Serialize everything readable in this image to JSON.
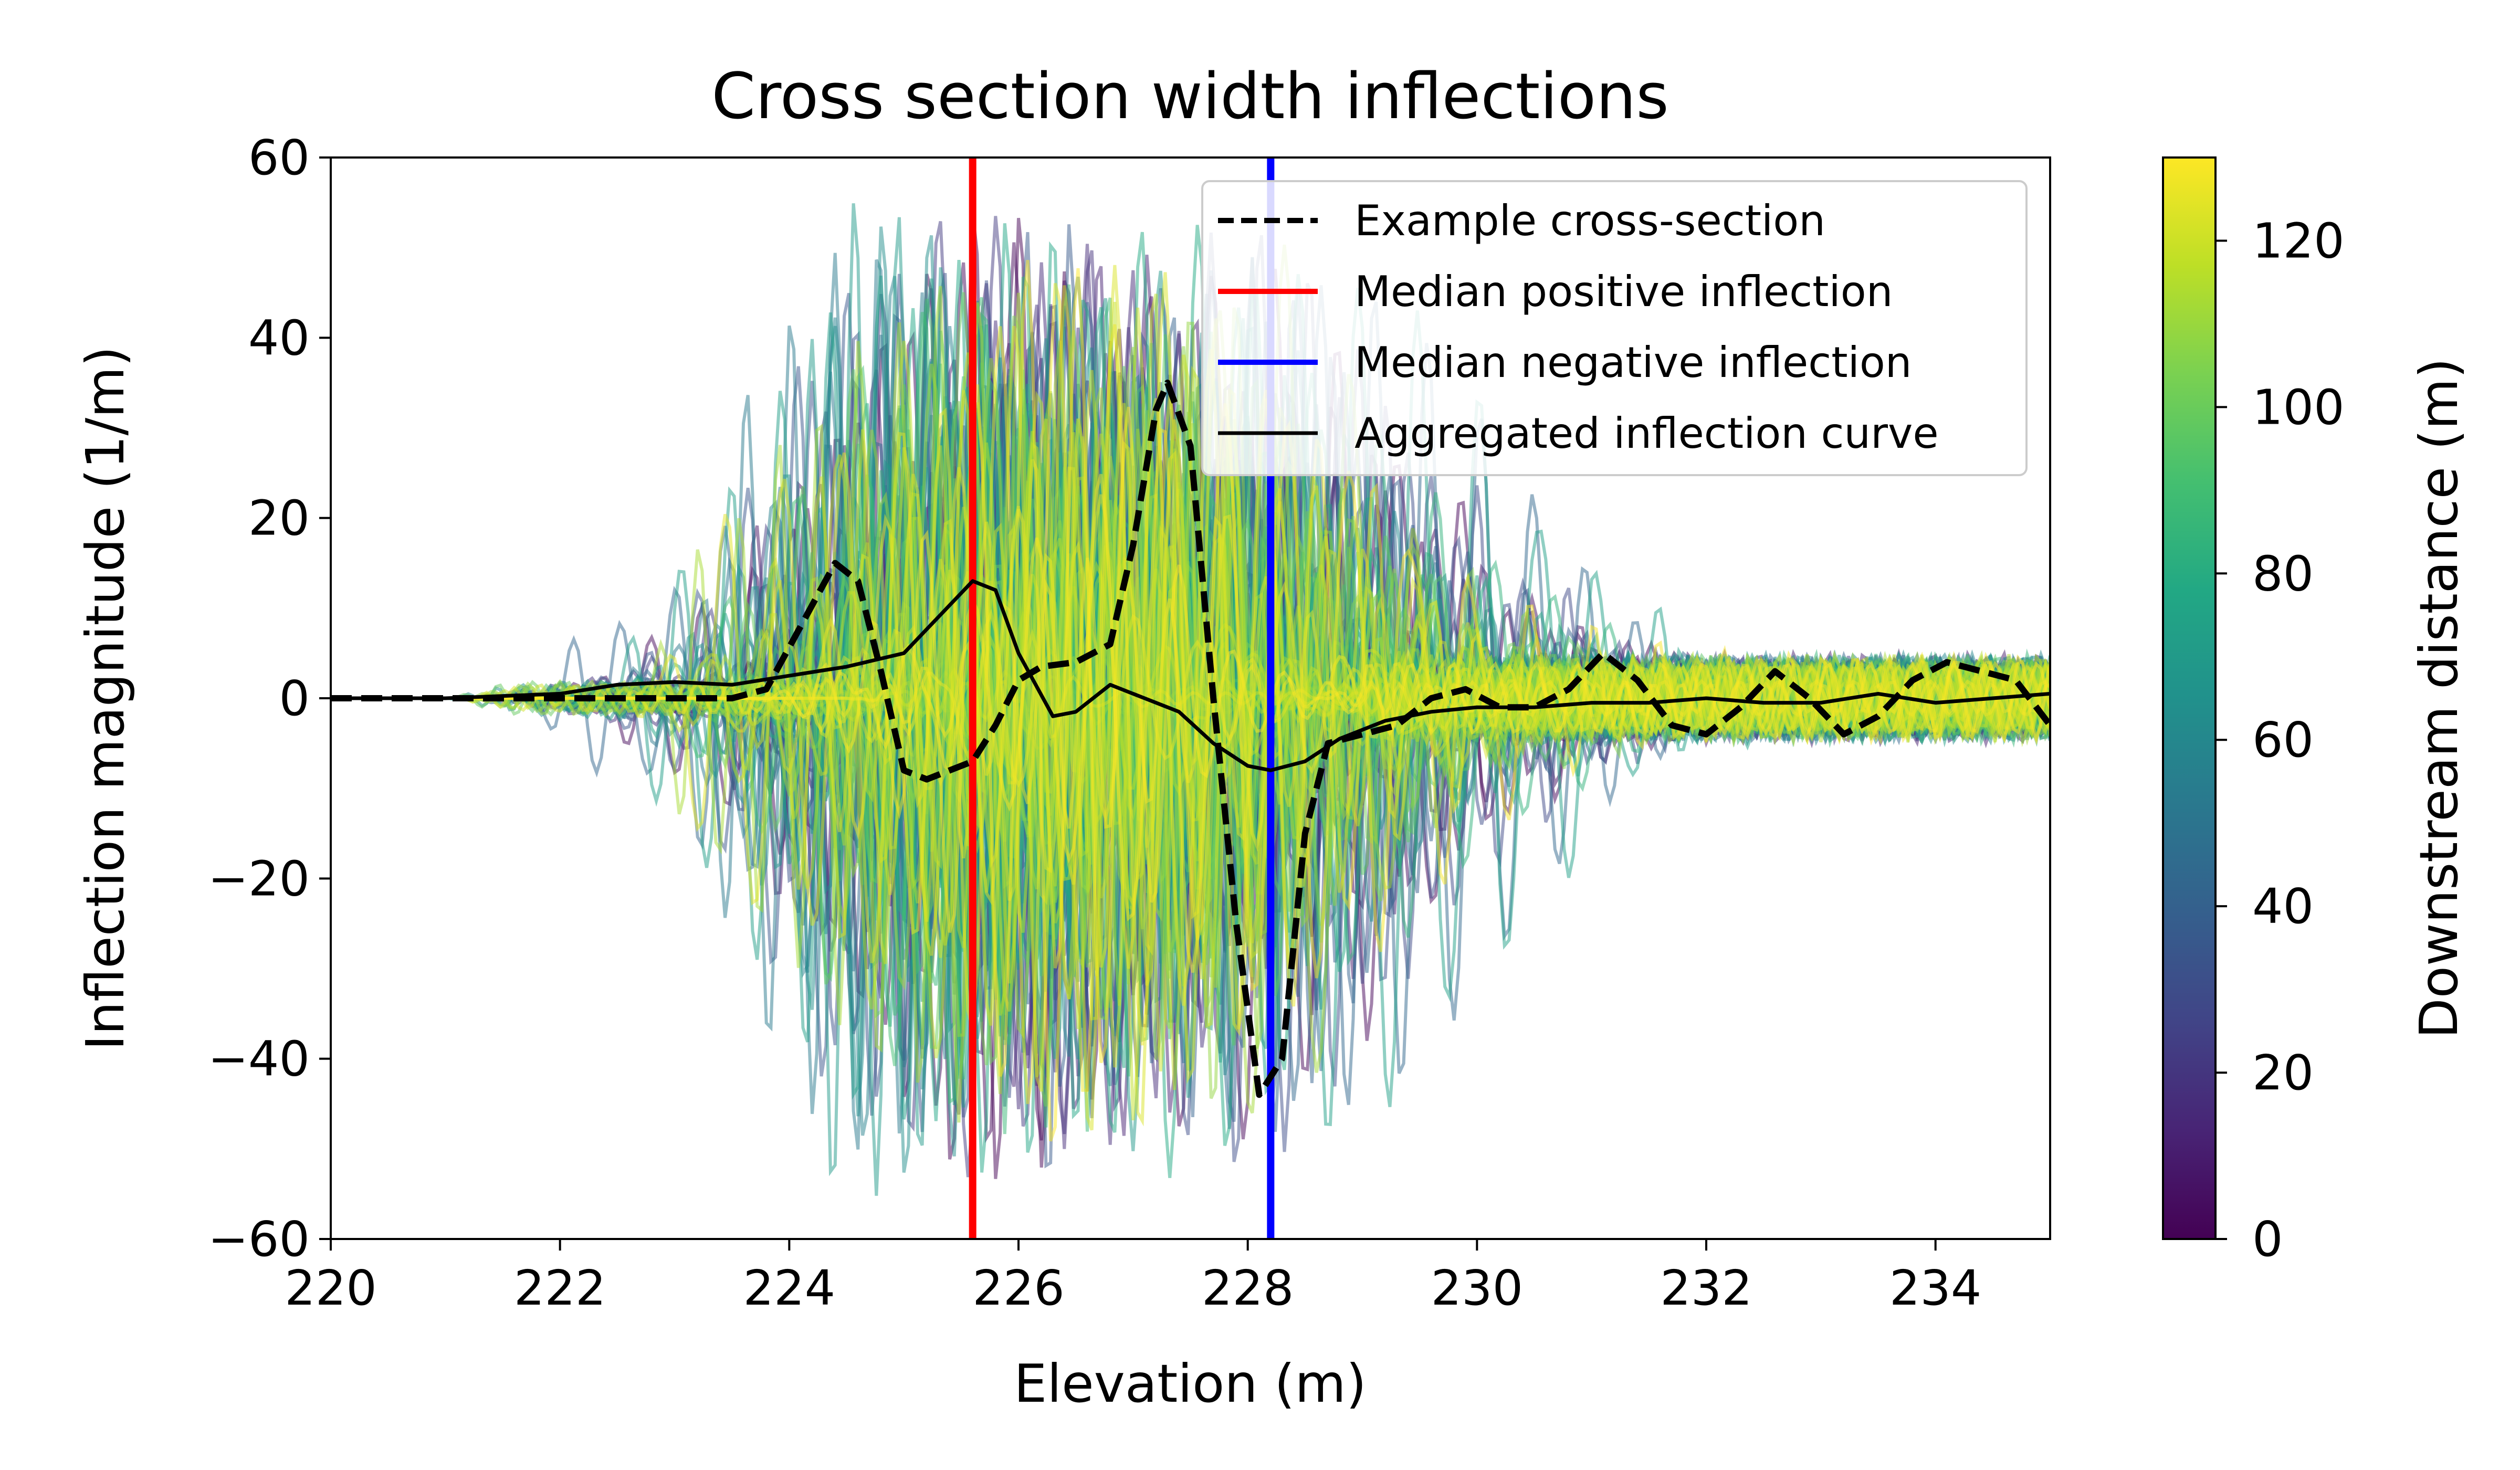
{
  "chart_data": {
    "type": "line",
    "title": "Cross section width inflections",
    "xlabel": "Elevation (m)",
    "ylabel": "Inflection magnitude (1/m)",
    "xlim": [
      220,
      235
    ],
    "ylim": [
      -60,
      60
    ],
    "xticks": [
      "220",
      "222",
      "224",
      "226",
      "228",
      "230",
      "232",
      "234"
    ],
    "yticks": [
      "60",
      "40",
      "20",
      "0",
      "−20",
      "−40",
      "−60"
    ],
    "grid": false,
    "legend_position": "top-right",
    "legend": [
      {
        "label": "Example cross-section",
        "color": "#000000",
        "style": "dashed"
      },
      {
        "label": "Median positive inflection",
        "color": "#ff0000",
        "style": "solid"
      },
      {
        "label": "Median negative inflection",
        "color": "#0000ff",
        "style": "solid"
      },
      {
        "label": "Aggregated inflection curve",
        "color": "#000000",
        "style": "solid"
      }
    ],
    "colorbar": {
      "label": "Downstream distance (m)",
      "range": [
        0,
        130
      ],
      "ticks": [
        "0",
        "20",
        "40",
        "60",
        "80",
        "100",
        "120"
      ],
      "colormap": "viridis"
    },
    "vertical_lines": [
      {
        "name": "Median positive inflection",
        "x": 225.6,
        "color": "#ff0000"
      },
      {
        "name": "Median negative inflection",
        "x": 228.2,
        "color": "#0000ff"
      }
    ],
    "series": [
      {
        "name": "Example cross-section",
        "style": "dashed",
        "color": "#000000",
        "x": [
          220,
          221,
          222,
          222.5,
          223,
          223.5,
          223.8,
          224.1,
          224.4,
          224.6,
          224.8,
          225.0,
          225.2,
          225.4,
          225.6,
          225.8,
          226.0,
          226.2,
          226.5,
          226.8,
          227.0,
          227.2,
          227.3,
          227.5,
          227.7,
          227.9,
          228.1,
          228.3,
          228.5,
          228.7,
          229.0,
          229.3,
          229.6,
          229.9,
          230.2,
          230.5,
          230.8,
          231.1,
          231.4,
          231.7,
          232.0,
          232.3,
          232.6,
          232.9,
          233.2,
          233.5,
          233.8,
          234.1,
          234.4,
          234.7,
          235.0
        ],
        "values": [
          0,
          0,
          0,
          0,
          0,
          0,
          1,
          8,
          15,
          13,
          3,
          -8,
          -9,
          -8,
          -7,
          -3,
          2,
          3.5,
          4,
          6,
          17,
          32,
          35,
          28,
          0,
          -25,
          -44,
          -40,
          -15,
          -5,
          -4,
          -3,
          0,
          1,
          -1,
          -1,
          1,
          5,
          2,
          -3,
          -4,
          -1,
          3,
          0,
          -4,
          -2,
          2,
          4,
          3,
          2,
          -3
        ]
      },
      {
        "name": "Aggregated inflection curve",
        "style": "solid",
        "color": "#000000",
        "x": [
          220,
          221,
          222,
          222.5,
          223,
          223.5,
          224,
          224.5,
          225,
          225.3,
          225.6,
          225.8,
          226,
          226.3,
          226.5,
          226.8,
          227.1,
          227.4,
          227.7,
          228,
          228.2,
          228.5,
          228.8,
          229.2,
          229.6,
          230,
          230.5,
          231,
          231.5,
          232,
          232.5,
          233,
          233.5,
          234,
          234.5,
          235
        ],
        "values": [
          0,
          0,
          0.5,
          1.5,
          1.8,
          1.5,
          2.5,
          3.5,
          5,
          9,
          13,
          12,
          5,
          -2,
          -1.5,
          1.5,
          0,
          -1.5,
          -5,
          -7.5,
          -8,
          -7,
          -4.5,
          -2.5,
          -1.5,
          -1,
          -1,
          -0.5,
          -0.5,
          0,
          -0.5,
          -0.5,
          0.5,
          -0.5,
          0,
          0.5
        ]
      }
    ],
    "background_ensemble_note_count": 130
  }
}
